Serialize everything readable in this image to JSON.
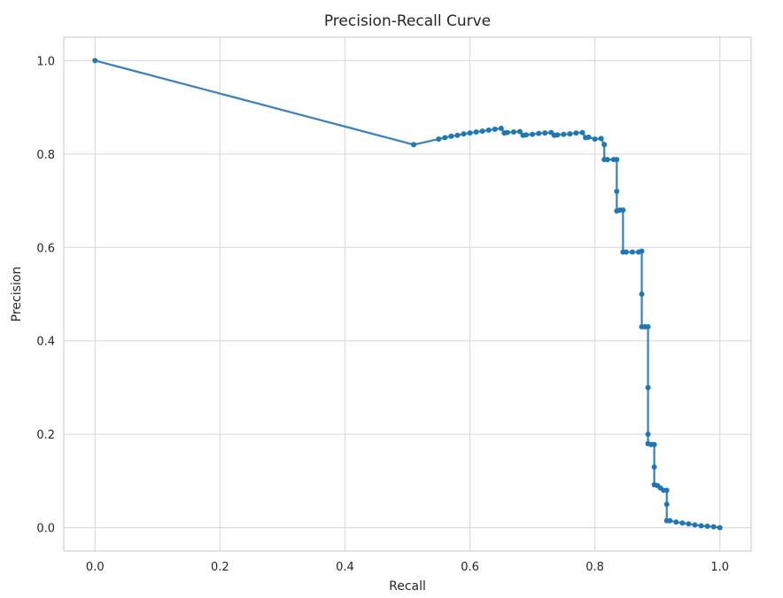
{
  "chart_data": {
    "type": "line",
    "title": "Precision-Recall Curve",
    "xlabel": "Recall",
    "ylabel": "Precision",
    "xlim": [
      -0.05,
      1.05
    ],
    "ylim": [
      -0.05,
      1.05
    ],
    "xticks": [
      0.0,
      0.2,
      0.4,
      0.6,
      0.8,
      1.0
    ],
    "yticks": [
      0.0,
      0.2,
      0.4,
      0.6,
      0.8,
      1.0
    ],
    "xtick_labels": [
      "0.0",
      "0.2",
      "0.4",
      "0.6",
      "0.8",
      "1.0"
    ],
    "ytick_labels": [
      "0.0",
      "0.2",
      "0.4",
      "0.6",
      "0.8",
      "1.0"
    ],
    "grid": true,
    "marker": "circle",
    "line_color": "#3a80bd",
    "marker_color": "#1f77b4",
    "series": [
      {
        "x": [
          0.0,
          0.51,
          0.55,
          0.56,
          0.57,
          0.58,
          0.59,
          0.6,
          0.61,
          0.62,
          0.63,
          0.64,
          0.65,
          0.655,
          0.66,
          0.67,
          0.68,
          0.685,
          0.69,
          0.7,
          0.71,
          0.72,
          0.73,
          0.735,
          0.74,
          0.75,
          0.76,
          0.77,
          0.78,
          0.785,
          0.79,
          0.8,
          0.81,
          0.815,
          0.815,
          0.82,
          0.83,
          0.835,
          0.835,
          0.835,
          0.84,
          0.845,
          0.845,
          0.85,
          0.86,
          0.87,
          0.875,
          0.875,
          0.875,
          0.88,
          0.885,
          0.885,
          0.885,
          0.885,
          0.89,
          0.895,
          0.895,
          0.895,
          0.9,
          0.905,
          0.91,
          0.915,
          0.915,
          0.915,
          0.92,
          0.93,
          0.94,
          0.95,
          0.96,
          0.97,
          0.98,
          0.99,
          1.0
        ],
        "y": [
          1.0,
          0.82,
          0.832,
          0.835,
          0.838,
          0.84,
          0.843,
          0.845,
          0.847,
          0.849,
          0.851,
          0.853,
          0.855,
          0.845,
          0.846,
          0.847,
          0.848,
          0.84,
          0.841,
          0.842,
          0.844,
          0.845,
          0.846,
          0.84,
          0.841,
          0.842,
          0.843,
          0.845,
          0.846,
          0.835,
          0.836,
          0.832,
          0.833,
          0.82,
          0.788,
          0.788,
          0.788,
          0.788,
          0.72,
          0.678,
          0.68,
          0.68,
          0.59,
          0.59,
          0.59,
          0.59,
          0.592,
          0.5,
          0.43,
          0.43,
          0.43,
          0.3,
          0.2,
          0.18,
          0.178,
          0.178,
          0.13,
          0.092,
          0.09,
          0.085,
          0.08,
          0.08,
          0.05,
          0.015,
          0.015,
          0.012,
          0.01,
          0.008,
          0.006,
          0.004,
          0.003,
          0.002,
          0.0
        ]
      }
    ]
  }
}
